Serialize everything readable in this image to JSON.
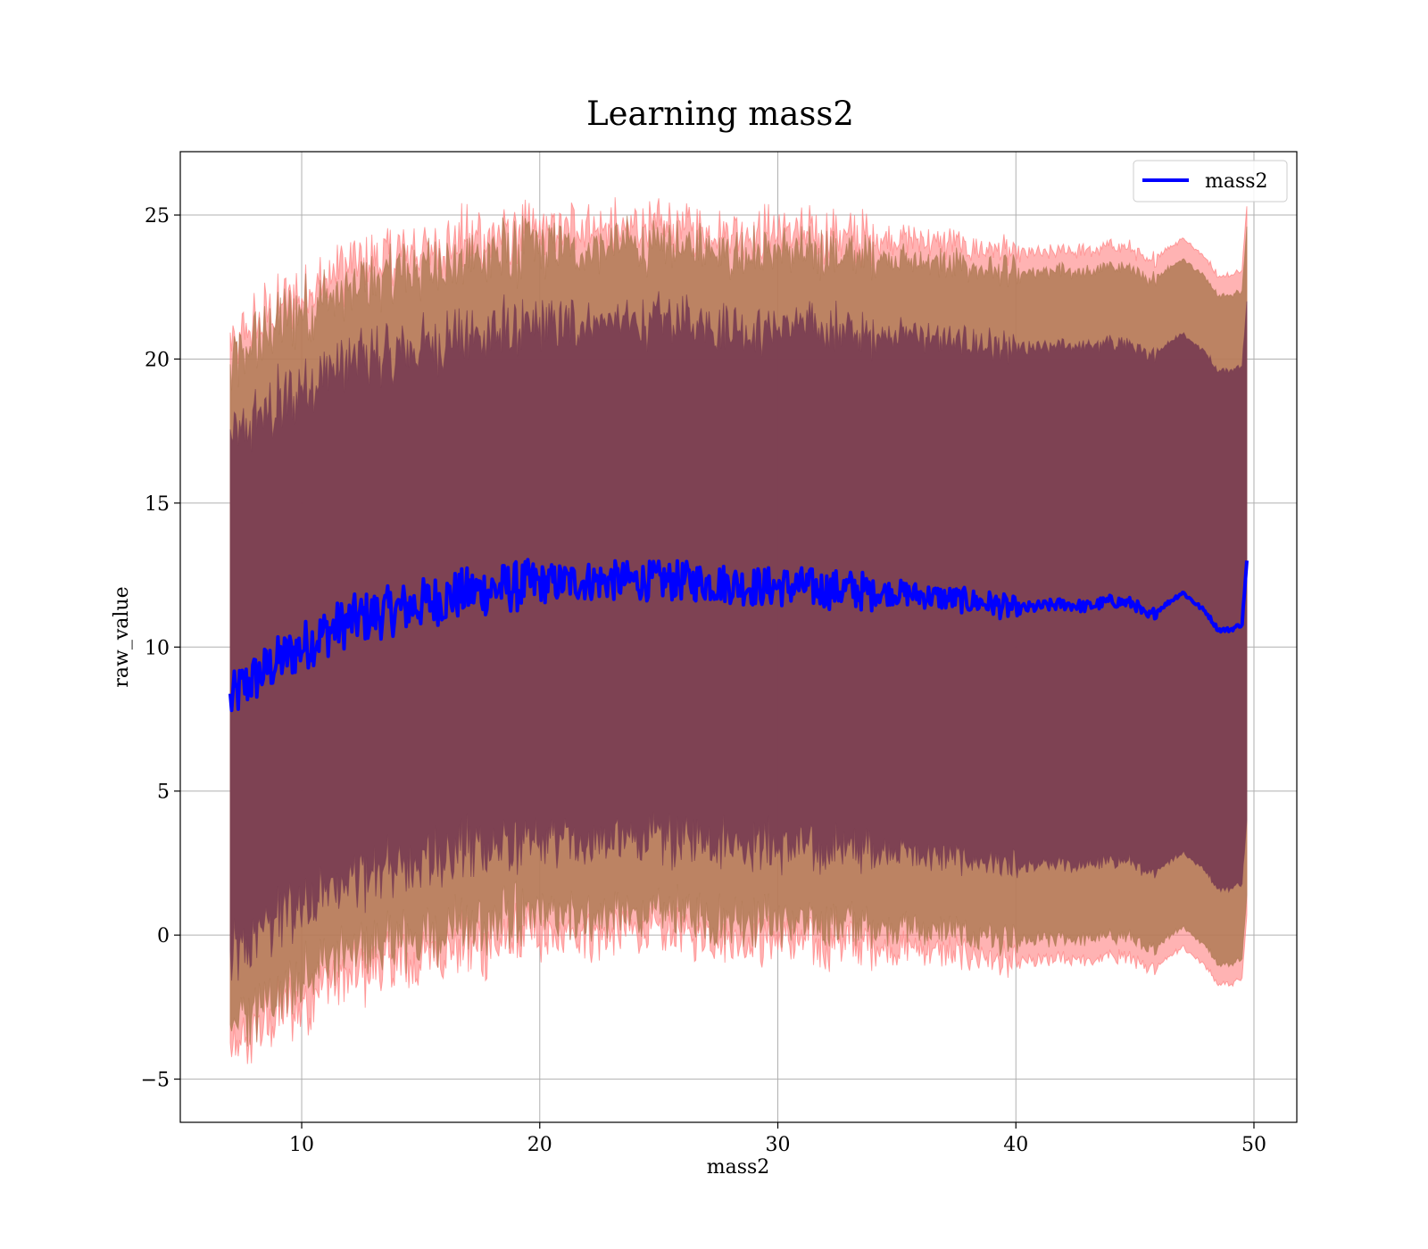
{
  "chart_data": {
    "type": "line",
    "title": "Learning mass2",
    "xlabel": "mass2",
    "ylabel": "raw_value",
    "xlim": [
      4.9,
      51.8
    ],
    "ylim": [
      -6.5,
      27.2
    ],
    "xticks": [
      10,
      20,
      30,
      40,
      50
    ],
    "yticks": [
      -5,
      0,
      5,
      10,
      15,
      20,
      25
    ],
    "ytick_labels": [
      "−5",
      "0",
      "5",
      "10",
      "15",
      "20",
      "25"
    ],
    "grid": true,
    "legend": {
      "location": "upper right",
      "entries": [
        "mass2"
      ]
    },
    "colors": {
      "mean_line": "#0000ff",
      "band_outer": "#ff8080",
      "band_middle": "#b07a55",
      "band_inner": "#7a3e52",
      "grid": "#b0b0b0"
    },
    "series": [
      {
        "name": "mass2",
        "x": [
          7.0,
          7.5,
          8,
          9,
          10,
          11,
          12,
          13,
          14,
          15,
          16,
          17,
          18,
          19,
          20,
          21,
          22,
          23,
          24,
          25,
          26,
          27,
          28,
          29,
          30,
          31,
          32,
          33,
          34,
          35,
          36,
          37,
          38,
          39,
          40,
          41,
          42,
          43,
          44,
          45,
          45.5,
          46,
          47,
          48,
          48.5,
          49,
          49.5,
          49.7
        ],
        "y": [
          8.1,
          8.6,
          8.9,
          9.5,
          10.0,
          10.5,
          10.9,
          11.1,
          11.3,
          11.5,
          11.7,
          11.9,
          12.0,
          12.1,
          12.2,
          12.25,
          12.3,
          12.3,
          12.3,
          12.3,
          12.3,
          12.25,
          12.2,
          12.1,
          12.1,
          12.1,
          12.0,
          12.0,
          11.9,
          11.9,
          11.8,
          11.7,
          11.6,
          11.5,
          11.3,
          11.4,
          11.5,
          11.4,
          11.6,
          11.5,
          11.0,
          11.3,
          11.9,
          11.2,
          10.6,
          10.6,
          10.8,
          13.0
        ]
      }
    ],
    "bands": [
      {
        "role": "outer",
        "half_width": 12.3
      },
      {
        "role": "middle",
        "half_width": 11.6
      },
      {
        "role": "inner",
        "half_width": 9.0
      }
    ]
  }
}
